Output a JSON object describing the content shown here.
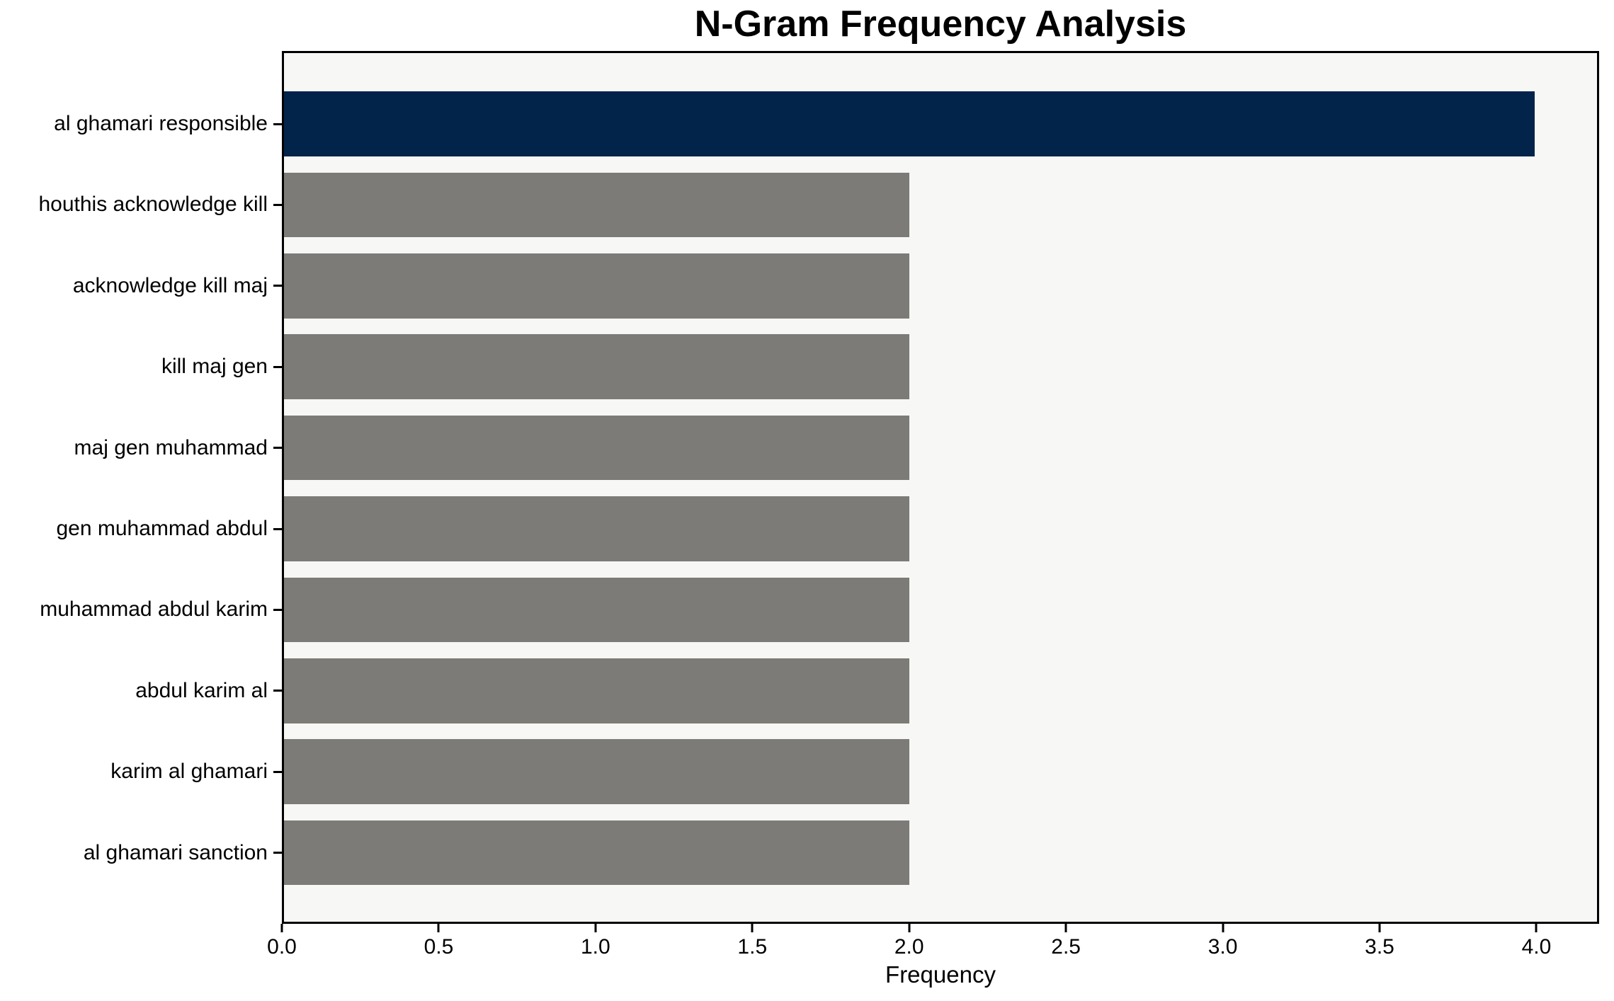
{
  "chart_data": {
    "type": "bar",
    "orientation": "horizontal",
    "title": "N-Gram Frequency Analysis",
    "xlabel": "Frequency",
    "ylabel": "",
    "categories": [
      "al ghamari responsible",
      "houthis acknowledge kill",
      "acknowledge kill maj",
      "kill maj gen",
      "maj gen muhammad",
      "gen muhammad abdul",
      "muhammad abdul karim",
      "abdul karim al",
      "karim al ghamari",
      "al ghamari sanction"
    ],
    "values": [
      4,
      2,
      2,
      2,
      2,
      2,
      2,
      2,
      2,
      2
    ],
    "bar_colors": [
      "#02234A",
      "#7C7B77",
      "#7C7B77",
      "#7C7B77",
      "#7C7B77",
      "#7C7B77",
      "#7C7B77",
      "#7C7B77",
      "#7C7B77",
      "#7C7B77"
    ],
    "xlim": [
      0,
      4.2
    ],
    "xtick_labels": [
      "0.0",
      "0.5",
      "1.0",
      "1.5",
      "2.0",
      "2.5",
      "3.0",
      "3.5",
      "4.0"
    ],
    "grid": false,
    "legend": "none",
    "colors": {
      "plot_background": "#F7F7F6",
      "figure_background": "#FFFFFF",
      "spine": "#000000",
      "text": "#000000"
    }
  }
}
